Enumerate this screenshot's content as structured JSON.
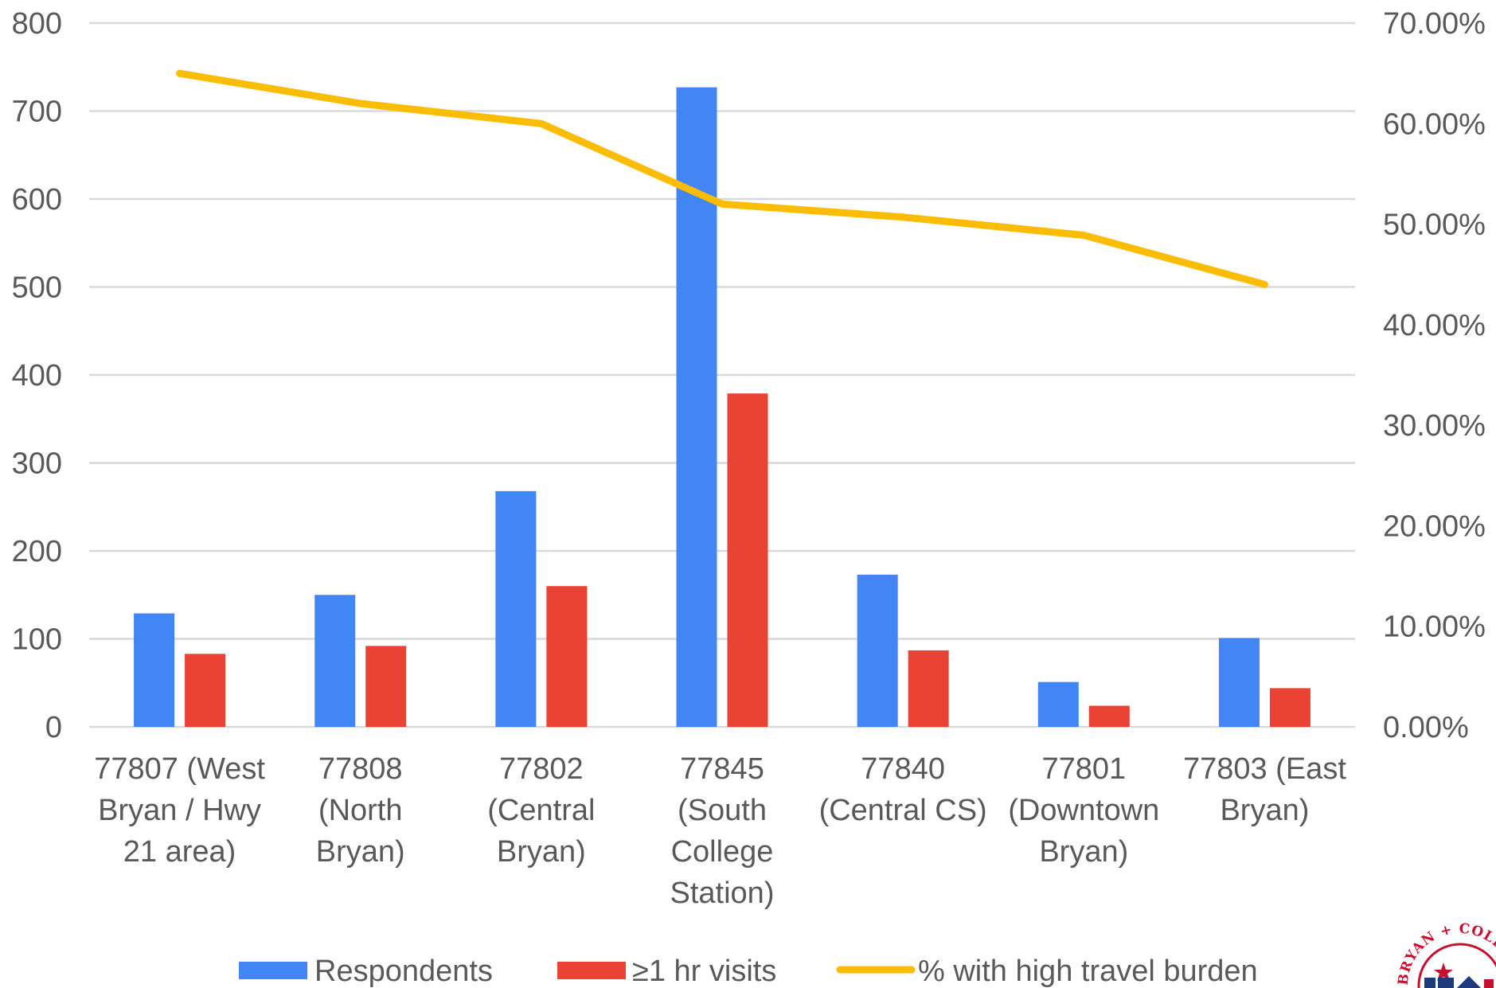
{
  "chart_data": {
    "type": "bar",
    "title": "",
    "xlabel": "",
    "ylabel": "",
    "grid": true,
    "legend_position": "bottom",
    "categories": [
      [
        "77807 (West",
        "Bryan / Hwy",
        "21 area)"
      ],
      [
        "77808",
        "(North",
        "Bryan)"
      ],
      [
        "77802",
        "(Central",
        "Bryan)"
      ],
      [
        "77845",
        "(South",
        "College",
        "Station)"
      ],
      [
        "77840",
        "(Central CS)"
      ],
      [
        "77801",
        "(Downtown",
        "Bryan)"
      ],
      [
        "77803 (East",
        "Bryan)"
      ]
    ],
    "y_left": {
      "min": 0,
      "max": 800,
      "ticks": [
        0,
        100,
        200,
        300,
        400,
        500,
        600,
        700,
        800
      ],
      "tick_labels": [
        "0",
        "100",
        "200",
        "300",
        "400",
        "500",
        "600",
        "700",
        "800"
      ]
    },
    "y_right": {
      "min": 0,
      "max": 0.7,
      "ticks": [
        0,
        0.1,
        0.2,
        0.3,
        0.4,
        0.5,
        0.6,
        0.7
      ],
      "tick_labels": [
        "0.00%",
        "10.00%",
        "20.00%",
        "30.00%",
        "40.00%",
        "50.00%",
        "60.00%",
        "70.00%"
      ]
    },
    "series": [
      {
        "name": "Respondents",
        "type": "bar",
        "axis": "left",
        "color": "#4285F4",
        "values": [
          129,
          150,
          268,
          727,
          173,
          51,
          101
        ]
      },
      {
        "name": "≥1 hr visits",
        "type": "bar",
        "axis": "left",
        "color": "#EA4335",
        "values": [
          83,
          92,
          160,
          379,
          87,
          24,
          44
        ]
      },
      {
        "name": "% with high travel burden",
        "type": "line",
        "axis": "right",
        "color": "#FBBC04",
        "values": [
          0.65,
          0.62,
          0.6,
          0.52,
          0.507,
          0.489,
          0.44
        ]
      }
    ]
  },
  "colors": {
    "grid": "#d9d9d9",
    "text": "#595959"
  },
  "logo": {
    "text": "BRYAN + COLLEGE STATION",
    "icon": "city-seal-logo"
  }
}
